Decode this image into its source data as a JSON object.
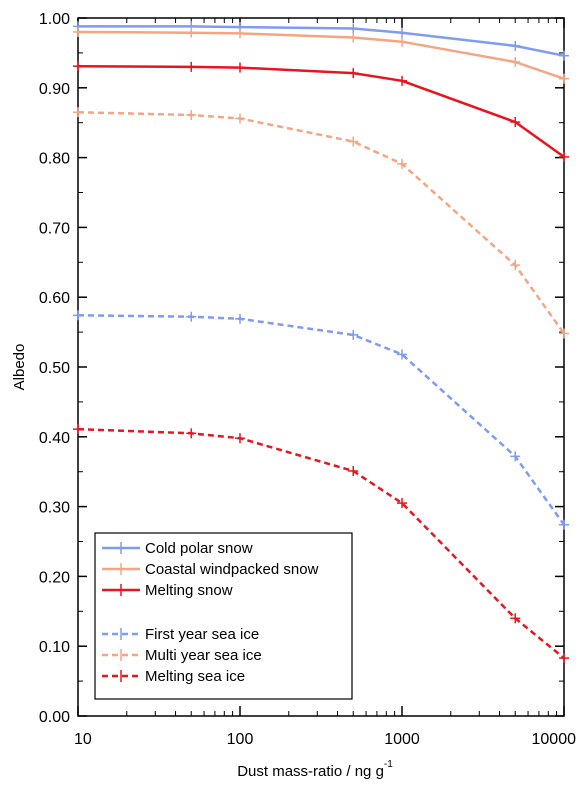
{
  "chart_data": {
    "type": "line",
    "xlabel": "Dust mass-ratio / ng g",
    "xlabel_superscript": "-1",
    "ylabel": "Albedo",
    "x_scale": "log",
    "xlim": [
      10,
      10000
    ],
    "ylim": [
      0.0,
      1.0
    ],
    "x_ticks": [
      10,
      100,
      1000,
      10000
    ],
    "x_tick_labels": [
      "10",
      "100",
      "1000",
      "10000"
    ],
    "y_ticks": [
      0.0,
      0.1,
      0.2,
      0.3,
      0.4,
      0.5,
      0.6,
      0.7,
      0.8,
      0.9,
      1.0
    ],
    "y_tick_labels": [
      "0.00",
      "0.10",
      "0.20",
      "0.30",
      "0.40",
      "0.50",
      "0.60",
      "0.70",
      "0.80",
      "0.90",
      "1.00"
    ],
    "grid": false,
    "legend_position": "bottom-left",
    "x": [
      10,
      50,
      100,
      500,
      1000,
      5000,
      10000
    ],
    "series": [
      {
        "name": "Cold polar snow",
        "values": [
          0.988,
          0.988,
          0.987,
          0.985,
          0.979,
          0.96,
          0.946
        ],
        "color": "#7f9bf2",
        "dash": "solid"
      },
      {
        "name": "Coastal windpacked snow",
        "values": [
          0.98,
          0.979,
          0.978,
          0.972,
          0.966,
          0.937,
          0.913
        ],
        "color": "#f5a582",
        "dash": "solid"
      },
      {
        "name": "Melting snow",
        "values": [
          0.931,
          0.93,
          0.929,
          0.921,
          0.91,
          0.851,
          0.801
        ],
        "color": "#e8141e",
        "dash": "solid"
      },
      {
        "name": "First year sea ice",
        "values": [
          0.574,
          0.572,
          0.569,
          0.546,
          0.518,
          0.372,
          0.274
        ],
        "color": "#7f9bf2",
        "dash": "dashed"
      },
      {
        "name": "Multi year sea ice",
        "values": [
          0.865,
          0.861,
          0.856,
          0.823,
          0.791,
          0.646,
          0.548
        ],
        "color": "#f5a582",
        "dash": "dashed"
      },
      {
        "name": "Melting sea ice",
        "values": [
          0.411,
          0.405,
          0.398,
          0.351,
          0.305,
          0.14,
          0.083
        ],
        "color": "#e8141e",
        "dash": "dashed"
      }
    ]
  }
}
